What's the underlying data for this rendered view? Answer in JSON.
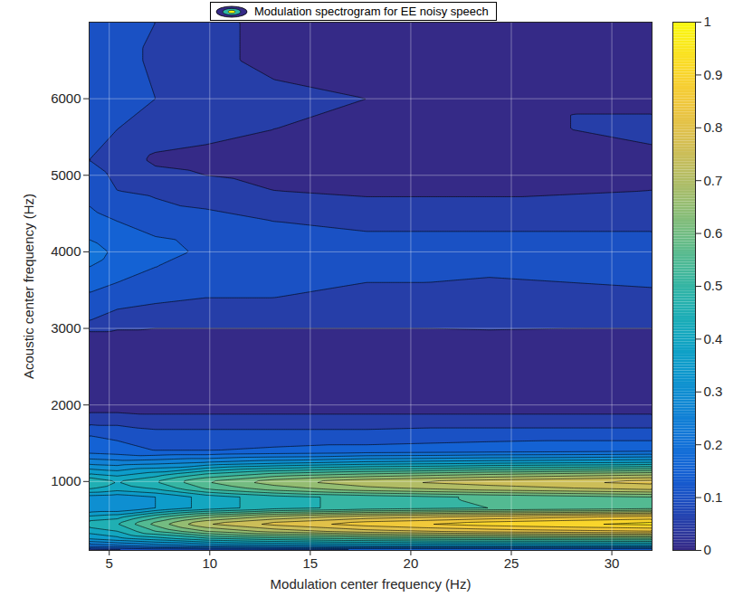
{
  "chart_data": {
    "type": "contour",
    "title": "Modulation spectrogram for EE noisy speech",
    "xlabel": "Modulation center frequency (Hz)",
    "ylabel": "Acoustic center frequency (Hz)",
    "x": [
      4,
      5.4,
      7.3,
      9.8,
      13.2,
      17.8,
      23.9,
      32
    ],
    "y": [
      100,
      150,
      250,
      350,
      450,
      550,
      650,
      800,
      900,
      1000,
      1100,
      1250,
      1400,
      1600,
      1800,
      2000,
      2500,
      2900,
      3100,
      3400,
      3800,
      4000,
      4400,
      4800,
      5200,
      5600,
      6000,
      6500,
      7000
    ],
    "values": [
      [
        0.05,
        0.06,
        0.08,
        0.08,
        0.09,
        0.1,
        0.1,
        0.1
      ],
      [
        0.2,
        0.22,
        0.25,
        0.28,
        0.3,
        0.32,
        0.32,
        0.33
      ],
      [
        0.35,
        0.38,
        0.42,
        0.48,
        0.52,
        0.55,
        0.57,
        0.58
      ],
      [
        0.42,
        0.45,
        0.55,
        0.65,
        0.72,
        0.78,
        0.82,
        0.85
      ],
      [
        0.48,
        0.5,
        0.62,
        0.75,
        0.82,
        0.88,
        0.93,
        0.97
      ],
      [
        0.4,
        0.42,
        0.52,
        0.62,
        0.7,
        0.76,
        0.8,
        0.85
      ],
      [
        0.3,
        0.3,
        0.35,
        0.42,
        0.48,
        0.52,
        0.55,
        0.58
      ],
      [
        0.33,
        0.32,
        0.35,
        0.42,
        0.48,
        0.52,
        0.56,
        0.6
      ],
      [
        0.45,
        0.42,
        0.45,
        0.55,
        0.62,
        0.68,
        0.72,
        0.76
      ],
      [
        0.5,
        0.45,
        0.5,
        0.6,
        0.68,
        0.74,
        0.78,
        0.82
      ],
      [
        0.4,
        0.38,
        0.42,
        0.5,
        0.56,
        0.6,
        0.64,
        0.68
      ],
      [
        0.28,
        0.27,
        0.28,
        0.3,
        0.33,
        0.36,
        0.38,
        0.4
      ],
      [
        0.18,
        0.17,
        0.15,
        0.15,
        0.16,
        0.17,
        0.18,
        0.19
      ],
      [
        0.15,
        0.14,
        0.12,
        0.12,
        0.12,
        0.12,
        0.13,
        0.13
      ],
      [
        0.08,
        0.08,
        0.07,
        0.07,
        0.07,
        0.07,
        0.07,
        0.07
      ],
      [
        0.02,
        0.02,
        0.02,
        0.02,
        0.02,
        0.02,
        0.02,
        0.02
      ],
      [
        0.02,
        0.02,
        0.02,
        0.02,
        0.02,
        0.02,
        0.02,
        0.02
      ],
      [
        0.03,
        0.03,
        0.03,
        0.03,
        0.03,
        0.03,
        0.03,
        0.03
      ],
      [
        0.1,
        0.08,
        0.07,
        0.07,
        0.07,
        0.07,
        0.08,
        0.07
      ],
      [
        0.14,
        0.12,
        0.11,
        0.1,
        0.1,
        0.09,
        0.08,
        0.09
      ],
      [
        0.2,
        0.18,
        0.15,
        0.14,
        0.12,
        0.11,
        0.11,
        0.12
      ],
      [
        0.22,
        0.19,
        0.17,
        0.14,
        0.13,
        0.12,
        0.12,
        0.12
      ],
      [
        0.17,
        0.15,
        0.13,
        0.12,
        0.1,
        0.09,
        0.09,
        0.09
      ],
      [
        0.13,
        0.1,
        0.09,
        0.07,
        0.05,
        0.04,
        0.04,
        0.05
      ],
      [
        0.1,
        0.08,
        0.04,
        0.03,
        0.02,
        0.02,
        0.02,
        0.04
      ],
      [
        0.12,
        0.1,
        0.08,
        0.07,
        0.05,
        0.04,
        0.04,
        0.06
      ],
      [
        0.13,
        0.12,
        0.1,
        0.08,
        0.06,
        0.05,
        0.04,
        0.04
      ],
      [
        0.13,
        0.12,
        0.09,
        0.06,
        0.04,
        0.03,
        0.02,
        0.02
      ],
      [
        0.14,
        0.12,
        0.1,
        0.06,
        0.04,
        0.03,
        0.02,
        0.02
      ]
    ],
    "xlim": [
      4,
      32
    ],
    "xticks": [
      5,
      10,
      15,
      20,
      25,
      30
    ],
    "ylim": [
      100,
      7000
    ],
    "yticks": [
      1000,
      2000,
      3000,
      4000,
      5000,
      6000
    ],
    "grid": true,
    "clim": [
      0,
      1
    ],
    "cticks": [
      0,
      0.1,
      0.2,
      0.3,
      0.4,
      0.5,
      0.6,
      0.7,
      0.8,
      0.9,
      1
    ]
  }
}
